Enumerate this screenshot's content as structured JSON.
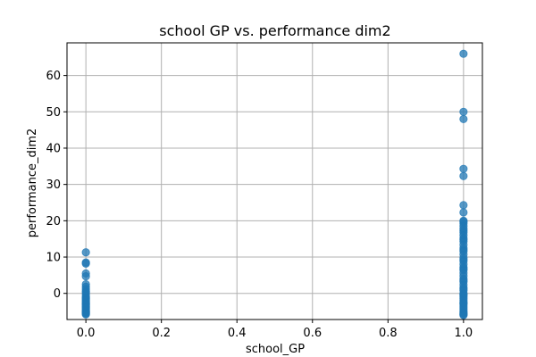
{
  "chart_data": {
    "type": "scatter",
    "title": "school GP vs. performance dim2",
    "xlabel": "school_GP",
    "ylabel": "performance_dim2",
    "xlim": [
      -0.05,
      1.05
    ],
    "ylim": [
      -7.2,
      69.0
    ],
    "grid": true,
    "color": "#1f77b4",
    "alpha": 0.75,
    "x_ticks": [
      0.0,
      0.2,
      0.4,
      0.6,
      0.8,
      1.0
    ],
    "x_tick_labels": [
      "0.0",
      "0.2",
      "0.4",
      "0.6",
      "0.8",
      "1.0"
    ],
    "y_ticks": [
      0,
      10,
      20,
      30,
      40,
      50,
      60
    ],
    "y_tick_labels": [
      "0",
      "10",
      "20",
      "30",
      "40",
      "50",
      "60"
    ],
    "series": [
      {
        "x": [
          0,
          0,
          0,
          0,
          0,
          0,
          0,
          0,
          0,
          0,
          0,
          0,
          0,
          0,
          0,
          0,
          0,
          0,
          0,
          0,
          0,
          0,
          0,
          0,
          0,
          0,
          0,
          0,
          0,
          0,
          1,
          1,
          1,
          1,
          1,
          1,
          1,
          1,
          1,
          1,
          1,
          1,
          1,
          1,
          1,
          1,
          1,
          1,
          1,
          1,
          1,
          1,
          1,
          1,
          1,
          1,
          1,
          1,
          1,
          1,
          1,
          1,
          1,
          1,
          1,
          1,
          1,
          1,
          1,
          1,
          1,
          1,
          1,
          1,
          1,
          1,
          1,
          1,
          1,
          1,
          1,
          1,
          1,
          1,
          1,
          1
        ],
        "y": [
          11.3,
          8.5,
          8.2,
          5.5,
          4.7,
          2.5,
          1.8,
          1.2,
          -0.3,
          -0.8,
          -1.2,
          -1.5,
          -1.8,
          -2.2,
          -2.5,
          -2.8,
          -3.0,
          -3.3,
          -3.6,
          -3.9,
          -4.2,
          -4.5,
          -4.8,
          -5.0,
          -5.2,
          -5.4,
          -5.6,
          -5.8,
          0.3,
          0.6,
          66.0,
          50.0,
          48.0,
          34.3,
          32.3,
          24.3,
          22.3,
          20.0,
          19.3,
          18.6,
          17.8,
          16.8,
          16.0,
          15.2,
          14.3,
          13.4,
          12.5,
          11.6,
          10.7,
          9.8,
          8.9,
          8.0,
          7.2,
          6.4,
          5.6,
          4.8,
          4.0,
          3.2,
          2.4,
          1.6,
          0.8,
          0.0,
          -0.5,
          -1.0,
          -1.5,
          -2.0,
          -2.5,
          -3.0,
          -3.5,
          -4.0,
          -4.5,
          -5.0,
          -5.3,
          -5.6,
          -5.8,
          -6.0,
          6.8,
          9.3,
          12.0,
          14.8,
          17.3,
          19.8,
          3.6,
          1.2,
          -0.3,
          -2.7
        ]
      }
    ]
  }
}
